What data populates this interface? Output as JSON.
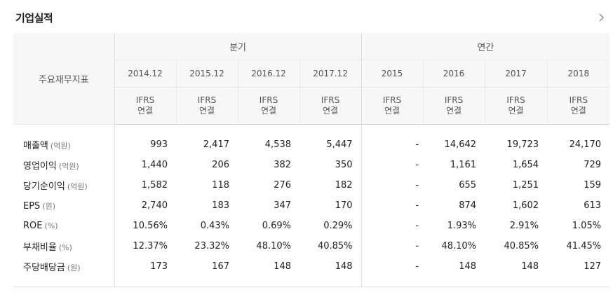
{
  "page": {
    "title": "기업실적"
  },
  "table": {
    "row_header": "주요재무지표",
    "groups": {
      "quarterly": "분기",
      "annual": "연간"
    },
    "columns": [
      {
        "period": "2014.12",
        "standard": "IFRS",
        "basis": "연결"
      },
      {
        "period": "2015.12",
        "standard": "IFRS",
        "basis": "연결"
      },
      {
        "period": "2016.12",
        "standard": "IFRS",
        "basis": "연결"
      },
      {
        "period": "2017.12",
        "standard": "IFRS",
        "basis": "연결"
      },
      {
        "period": "2015",
        "standard": "IFRS",
        "basis": "연결"
      },
      {
        "period": "2016",
        "standard": "IFRS",
        "basis": "연결"
      },
      {
        "period": "2017",
        "standard": "IFRS",
        "basis": "연결"
      },
      {
        "period": "2018",
        "standard": "IFRS",
        "basis": "연결"
      }
    ],
    "rows": [
      {
        "label": "매출액",
        "unit": "(억원)",
        "values": [
          "993",
          "2,417",
          "4,538",
          "5,447",
          "-",
          "14,642",
          "19,723",
          "24,170"
        ]
      },
      {
        "label": "영업이익",
        "unit": "(억원)",
        "values": [
          "1,440",
          "206",
          "382",
          "350",
          "-",
          "1,161",
          "1,654",
          "729"
        ]
      },
      {
        "label": "당기순이익",
        "unit": "(억원)",
        "values": [
          "1,582",
          "118",
          "276",
          "182",
          "-",
          "655",
          "1,251",
          "159"
        ]
      },
      {
        "label": "EPS",
        "unit": "(원)",
        "values": [
          "2,740",
          "183",
          "347",
          "170",
          "-",
          "874",
          "1,602",
          "613"
        ]
      },
      {
        "label": "ROE",
        "unit": "(%)",
        "values": [
          "10.56%",
          "0.43%",
          "0.69%",
          "0.29%",
          "-",
          "1.93%",
          "2.91%",
          "1.05%"
        ]
      },
      {
        "label": "부채비율",
        "unit": "(%)",
        "values": [
          "12.37%",
          "23.32%",
          "48.10%",
          "40.85%",
          "-",
          "48.10%",
          "40.85%",
          "41.45%"
        ]
      },
      {
        "label": "주당배당금",
        "unit": "(원)",
        "values": [
          "173",
          "167",
          "148",
          "148",
          "-",
          "148",
          "148",
          "127"
        ]
      }
    ]
  },
  "icons": {
    "more": "chevron-right-icon"
  }
}
